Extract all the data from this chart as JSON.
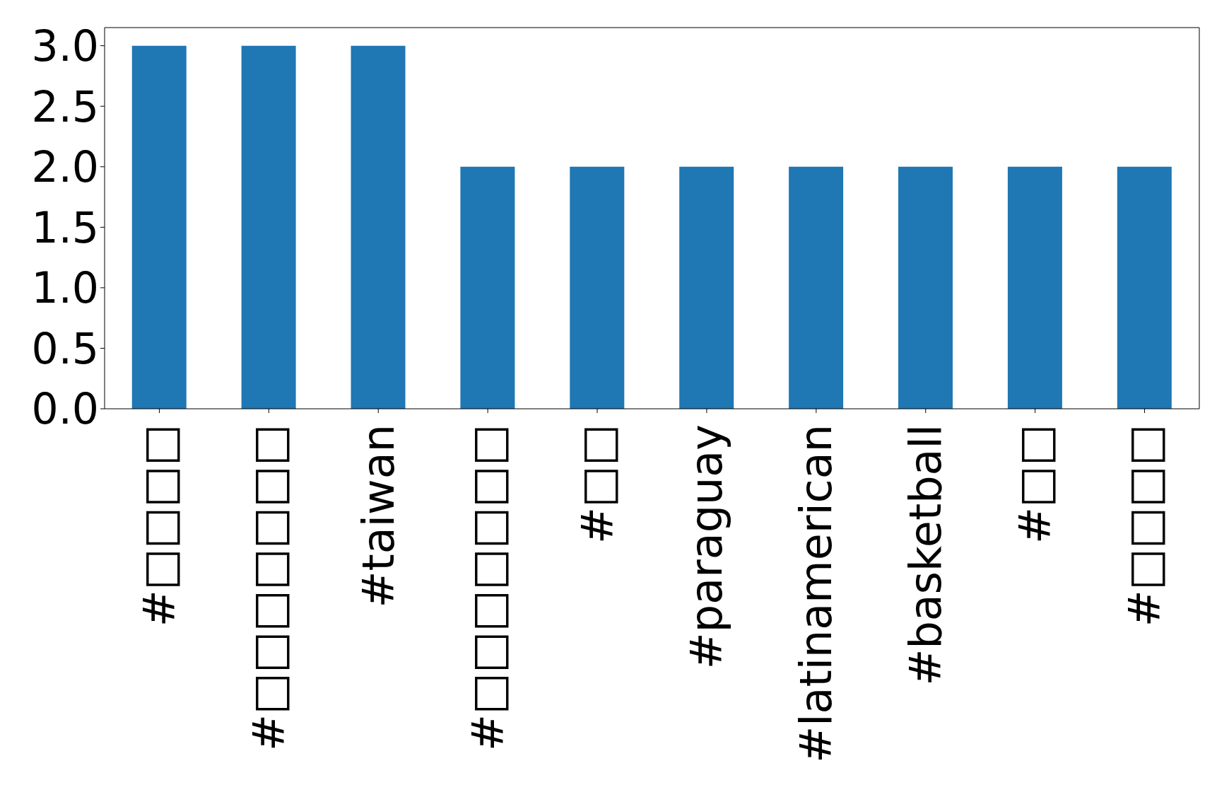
{
  "chart_data": {
    "type": "bar",
    "categories": [
      "#□□□□",
      "#□□□□□□□",
      "#taiwan",
      "#□□□□□□□",
      "#□□",
      "#paraguay",
      "#latinamerican",
      "#basketball",
      "#□□",
      "#□□□□"
    ],
    "values": [
      3,
      3,
      3,
      2,
      2,
      2,
      2,
      2,
      2,
      2
    ],
    "color": "#1f77b4",
    "ylim": [
      0,
      3.15
    ],
    "yticks": [
      {
        "value": 0,
        "label": "0.0"
      },
      {
        "value": 0.5,
        "label": "0.5"
      },
      {
        "value": 1,
        "label": "1.0"
      },
      {
        "value": 1.5,
        "label": "1.5"
      },
      {
        "value": 2,
        "label": "2.0"
      },
      {
        "value": 2.5,
        "label": "2.5"
      },
      {
        "value": 3,
        "label": "3.0"
      }
    ],
    "grid": false
  }
}
